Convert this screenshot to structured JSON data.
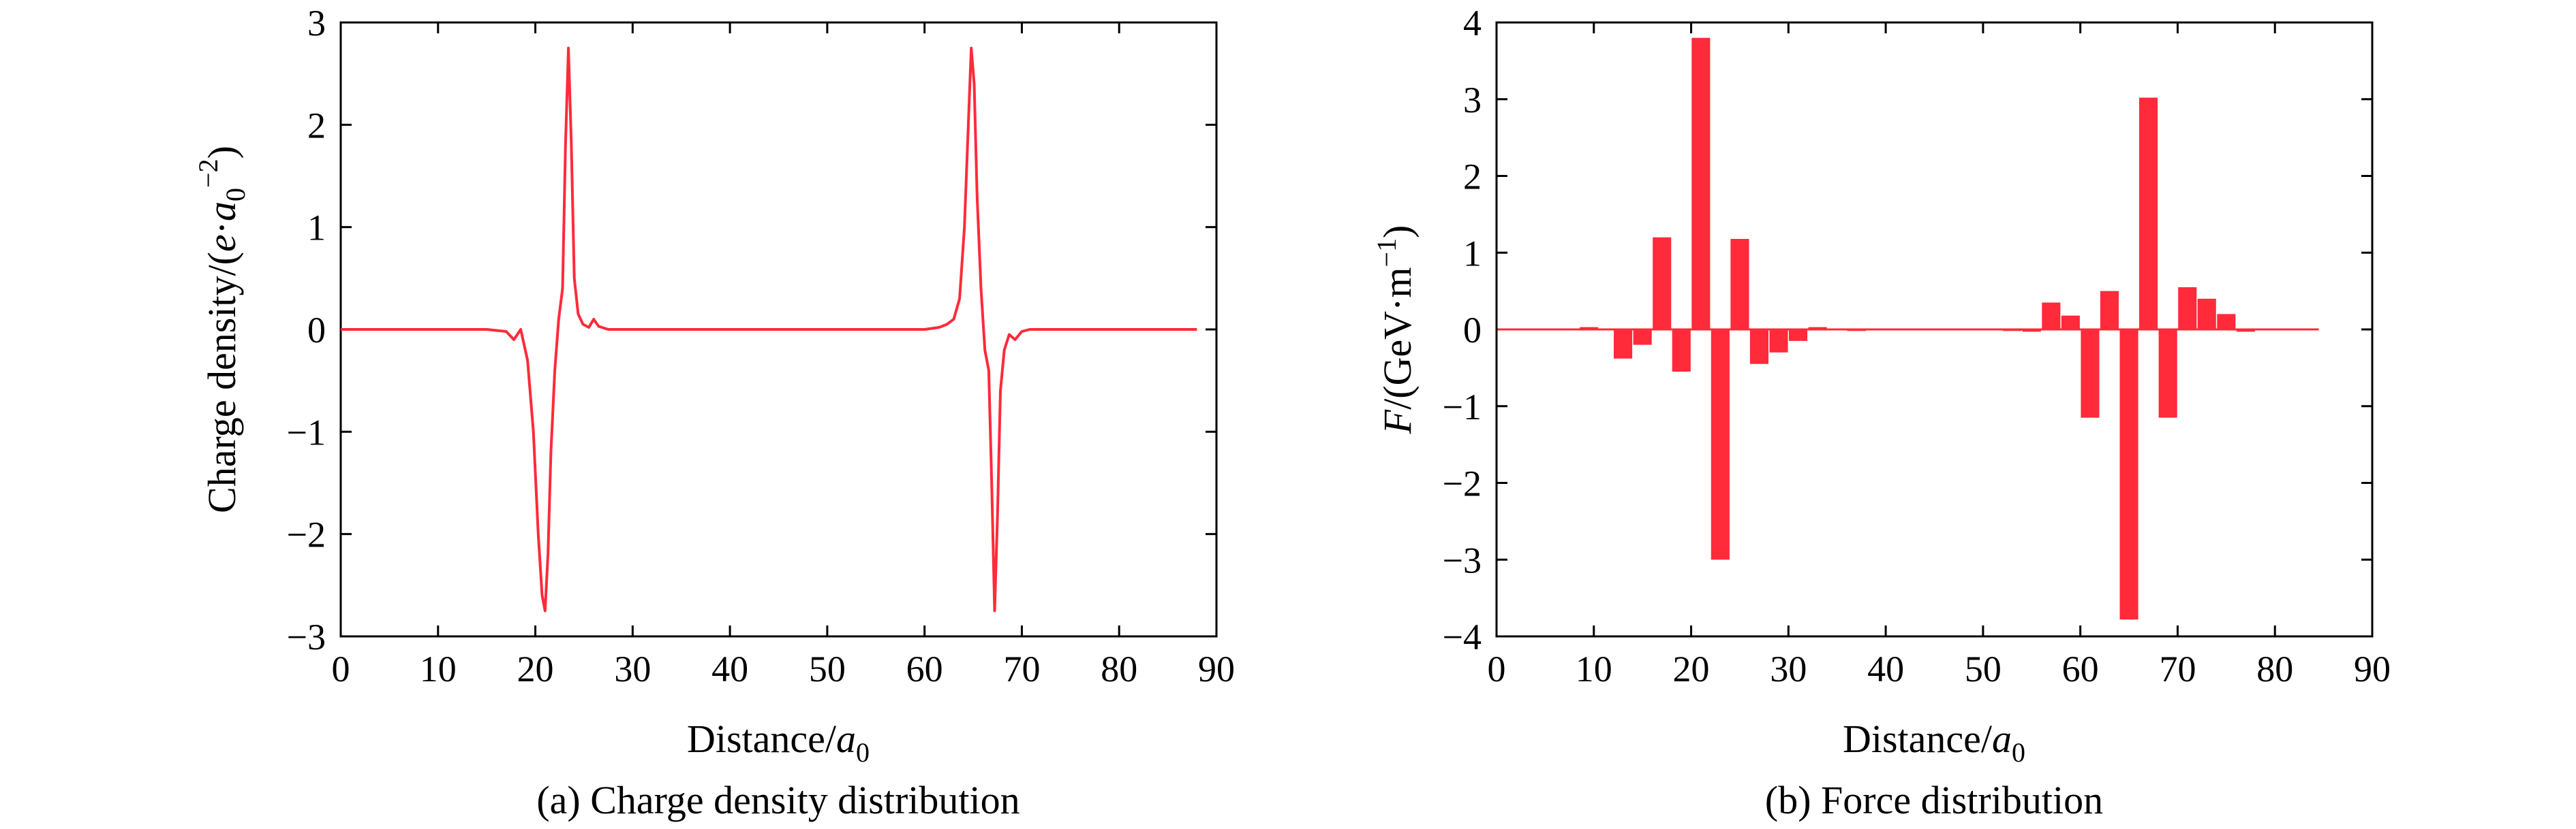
{
  "colors": {
    "series": "#ff2a3a",
    "axis": "#000000"
  },
  "chart_data": [
    {
      "type": "line",
      "caption": "(a) Charge density distribution",
      "xlabel": "Distance/a0",
      "ylabel": "Charge density/(e·a0−2)",
      "xlim": [
        0,
        90
      ],
      "ylim": [
        -3,
        3
      ],
      "xticks": [
        0,
        10,
        20,
        30,
        40,
        50,
        60,
        70,
        80,
        90
      ],
      "yticks": [
        -3,
        -2,
        -1,
        0,
        1,
        2,
        3
      ],
      "x_tick_labels": [
        "0",
        "10",
        "20",
        "30",
        "40",
        "50",
        "60",
        "70",
        "80",
        "90"
      ],
      "y_tick_labels": [
        "−3",
        "−2",
        "−1",
        "0",
        "1",
        "2",
        "3"
      ],
      "series": [
        {
          "x": [
            0,
            5,
            10,
            15,
            17,
            17.8,
            18.5,
            19.2,
            19.8,
            20.3,
            20.7,
            21.0,
            21.3,
            21.6,
            22.0,
            22.4,
            22.8,
            23.1,
            23.4,
            23.7,
            24.0,
            24.4,
            24.9,
            25.5,
            26.0,
            26.5,
            27.5,
            30,
            40,
            50,
            60,
            61.5,
            62.3,
            63.0,
            63.6,
            64.1,
            64.5,
            64.8,
            65.1,
            65.4,
            65.8,
            66.2,
            66.6,
            66.9,
            67.2,
            67.5,
            67.8,
            68.2,
            68.7,
            69.3,
            70.0,
            70.8,
            72,
            75,
            80,
            85,
            88
          ],
          "y": [
            0,
            0,
            0,
            0,
            -0.02,
            -0.1,
            0,
            -0.3,
            -1.0,
            -2.0,
            -2.6,
            -2.75,
            -2.2,
            -1.2,
            -0.4,
            0.1,
            0.4,
            1.8,
            2.75,
            1.8,
            0.5,
            0.15,
            0.05,
            0.02,
            0.1,
            0.03,
            0,
            0,
            0,
            0,
            0,
            0.02,
            0.05,
            0.1,
            0.3,
            1.0,
            2.0,
            2.75,
            2.4,
            1.3,
            0.4,
            -0.2,
            -0.4,
            -1.5,
            -2.75,
            -1.8,
            -0.6,
            -0.2,
            -0.05,
            -0.1,
            -0.02,
            0,
            0,
            0,
            0,
            0,
            0
          ]
        }
      ]
    },
    {
      "type": "bar",
      "caption": "(b) Force distribution",
      "xlabel": "Distance/a0",
      "ylabel": "F/(GeV·m−1)",
      "xlim": [
        0,
        90
      ],
      "ylim": [
        -4,
        4
      ],
      "xticks": [
        0,
        10,
        20,
        30,
        40,
        50,
        60,
        70,
        80,
        90
      ],
      "yticks": [
        -4,
        -3,
        -2,
        -1,
        0,
        1,
        2,
        3,
        4
      ],
      "x_tick_labels": [
        "0",
        "10",
        "20",
        "30",
        "40",
        "50",
        "60",
        "70",
        "80",
        "90"
      ],
      "y_tick_labels": [
        "−4",
        "−3",
        "−2",
        "−1",
        "0",
        "1",
        "2",
        "3",
        "4"
      ],
      "bar_width": 1.9,
      "x_start": 0,
      "x_end": 84.5,
      "series": [
        {
          "x": [
            9.5,
            13,
            15,
            17,
            19,
            21,
            23,
            25,
            27,
            29,
            31,
            33,
            37,
            53,
            55,
            57,
            59,
            61,
            63,
            65,
            67,
            69,
            71,
            73,
            75,
            77
          ],
          "values": [
            0.03,
            -0.38,
            -0.2,
            1.2,
            -0.55,
            3.8,
            -3.0,
            1.18,
            -0.45,
            -0.3,
            -0.15,
            0.03,
            -0.02,
            -0.02,
            -0.03,
            0.35,
            0.18,
            -1.15,
            0.5,
            -3.78,
            3.02,
            -1.15,
            0.55,
            0.4,
            0.2,
            -0.03
          ]
        }
      ]
    }
  ]
}
